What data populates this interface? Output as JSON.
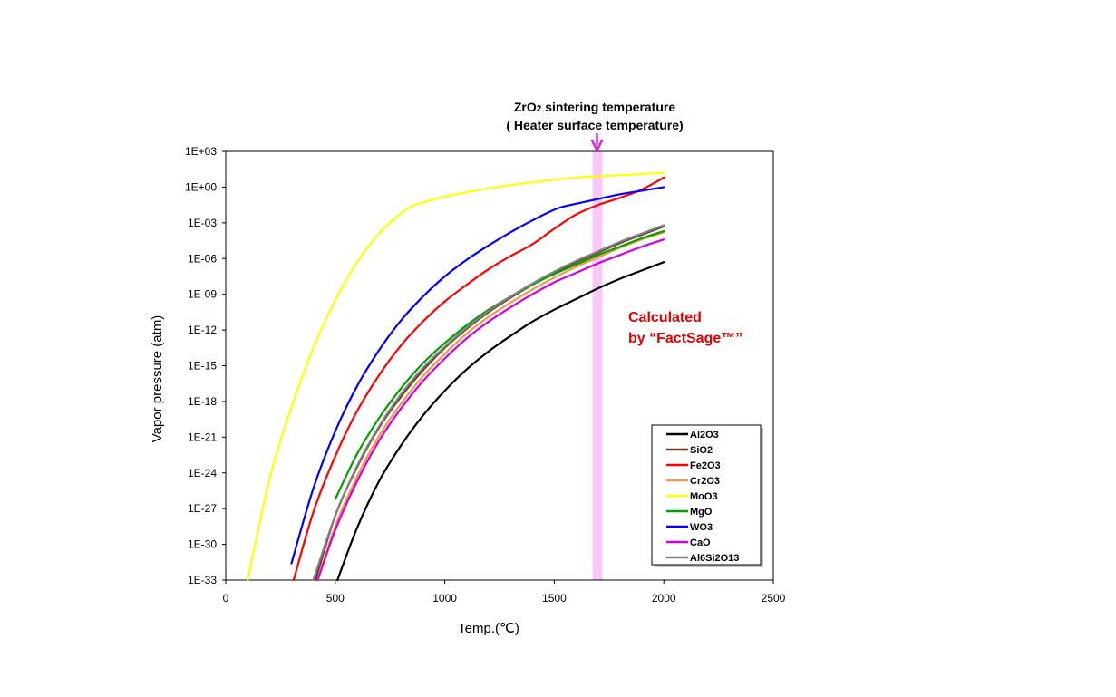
{
  "chart_data": {
    "type": "line",
    "xlabel": "Temp.(℃)",
    "ylabel": "Vapor pressure (atm)",
    "xlim": [
      0,
      2500
    ],
    "ylim_log10": [
      -33,
      3
    ],
    "x_ticks": [
      0,
      500,
      1000,
      1500,
      2000,
      2500
    ],
    "x_tick_labels": [
      "0",
      "500",
      "1000",
      "1500",
      "2000",
      "2500"
    ],
    "y_ticks_log10": [
      3,
      0,
      -3,
      -6,
      -9,
      -12,
      -15,
      -18,
      -21,
      -24,
      -27,
      -30,
      -33
    ],
    "y_tick_labels": [
      "1E+03",
      "1E+00",
      "1E-03",
      "1E-06",
      "1E-09",
      "1E-12",
      "1E-15",
      "1E-18",
      "1E-21",
      "1E-24",
      "1E-27",
      "1E-30",
      "1E-33"
    ],
    "y_scale": "log",
    "grid": false,
    "legend_position": "bottom-right",
    "band": {
      "x_range": [
        1675,
        1720
      ],
      "color": "#f8c8f8"
    },
    "annotation": {
      "line1_prefix": "ZrO",
      "line1_sub": "2",
      "line1_suffix": " sintering temperature",
      "line2": "( Heater surface temperature)",
      "arrow_x": 1695,
      "arrow_color": "#e020e0"
    },
    "note_line1": "Calculated",
    "note_line2": "by “FactSage™”",
    "series": [
      {
        "name": "Al2O3",
        "color": "#000000",
        "x": [
          510,
          600,
          700,
          800,
          900,
          1000,
          1100,
          1200,
          1300,
          1400,
          1500,
          1600,
          1700,
          1800,
          1900,
          2000
        ],
        "log10_y": [
          -33,
          -28.6,
          -24.7,
          -21.7,
          -19.2,
          -17.1,
          -15.3,
          -13.8,
          -12.5,
          -11.3,
          -10.3,
          -9.4,
          -8.5,
          -7.7,
          -7.0,
          -6.3
        ]
      },
      {
        "name": "SiO2",
        "color": "#6b3a1e",
        "x": [
          410,
          500,
          600,
          700,
          800,
          900,
          1000,
          1100,
          1200,
          1300,
          1400,
          1500,
          1600,
          1700,
          1800,
          1900,
          2000
        ],
        "log10_y": [
          -33,
          -27.6,
          -23.5,
          -20.2,
          -17.6,
          -15.4,
          -13.5,
          -11.9,
          -10.5,
          -9.3,
          -8.2,
          -7.2,
          -6.3,
          -5.5,
          -4.7,
          -4.0,
          -3.3
        ]
      },
      {
        "name": "Fe2O3",
        "color": "#ff0000",
        "x": [
          310,
          400,
          500,
          600,
          700,
          800,
          900,
          1000,
          1100,
          1200,
          1300,
          1400,
          1500,
          1600,
          1700,
          1800,
          1900,
          2000
        ],
        "log10_y": [
          -33,
          -27.3,
          -22.6,
          -18.8,
          -15.8,
          -13.3,
          -11.3,
          -9.6,
          -8.2,
          -6.9,
          -5.8,
          -4.8,
          -3.5,
          -2.3,
          -1.5,
          -0.9,
          -0.2,
          0.8
        ]
      },
      {
        "name": "Cr2O3",
        "color": "#f79646",
        "x": [
          420,
          500,
          600,
          700,
          800,
          900,
          1000,
          1100,
          1200,
          1300,
          1400,
          1500,
          1600,
          1700,
          1800,
          1900,
          2000
        ],
        "log10_y": [
          -33,
          -28.5,
          -24.3,
          -20.9,
          -18.2,
          -15.9,
          -14.0,
          -12.3,
          -10.9,
          -9.7,
          -8.6,
          -7.6,
          -6.7,
          -5.9,
          -5.1,
          -4.4,
          -3.8
        ]
      },
      {
        "name": "MoO3",
        "color": "#ffff00",
        "x": [
          100,
          200,
          300,
          400,
          500,
          600,
          700,
          800,
          850,
          900,
          1000,
          1200,
          1400,
          1600,
          1800,
          2000
        ],
        "log10_y": [
          -33,
          -24.5,
          -18.5,
          -13.5,
          -9.5,
          -6.3,
          -3.9,
          -2.2,
          -1.6,
          -1.3,
          -0.8,
          -0.1,
          0.4,
          0.8,
          1.0,
          1.2
        ]
      },
      {
        "name": "MgO",
        "color": "#00a000",
        "x": [
          500,
          600,
          700,
          800,
          900,
          1000,
          1100,
          1200,
          1300,
          1400,
          1500,
          1600,
          1700,
          1800,
          1900,
          2000
        ],
        "log10_y": [
          -26.2,
          -22.4,
          -19.4,
          -16.9,
          -14.8,
          -13.1,
          -11.6,
          -10.3,
          -9.2,
          -8.2,
          -7.3,
          -6.5,
          -5.7,
          -5.0,
          -4.3,
          -3.7
        ]
      },
      {
        "name": "WO3",
        "color": "#0000ff",
        "x": [
          300,
          400,
          500,
          600,
          700,
          800,
          900,
          1000,
          1100,
          1200,
          1300,
          1400,
          1500,
          1550,
          1600,
          1700,
          1800,
          1900,
          2000
        ],
        "log10_y": [
          -31.6,
          -25.3,
          -20.5,
          -16.7,
          -13.7,
          -11.2,
          -9.2,
          -7.5,
          -6.1,
          -4.9,
          -3.8,
          -2.8,
          -1.9,
          -1.6,
          -1.4,
          -1.0,
          -0.6,
          -0.3,
          0.0
        ]
      },
      {
        "name": "CaO",
        "color": "#d000e0",
        "x": [
          420,
          500,
          600,
          700,
          800,
          900,
          1000,
          1100,
          1200,
          1300,
          1400,
          1500,
          1600,
          1700,
          1800,
          1900,
          2000
        ],
        "log10_y": [
          -33,
          -28.8,
          -24.7,
          -21.3,
          -18.6,
          -16.3,
          -14.4,
          -12.7,
          -11.3,
          -10.1,
          -9.0,
          -8.0,
          -7.2,
          -6.4,
          -5.7,
          -5.0,
          -4.4
        ]
      },
      {
        "name": "Al6Si2O13",
        "color": "#808080",
        "x": [
          400,
          500,
          600,
          700,
          800,
          900,
          1000,
          1100,
          1200,
          1300,
          1400,
          1500,
          1600,
          1700,
          1800,
          1900,
          2000
        ],
        "log10_y": [
          -33,
          -27.6,
          -23.4,
          -20.1,
          -17.4,
          -15.2,
          -13.4,
          -11.8,
          -10.4,
          -9.2,
          -8.1,
          -7.1,
          -6.2,
          -5.4,
          -4.6,
          -3.9,
          -3.2
        ]
      }
    ]
  }
}
